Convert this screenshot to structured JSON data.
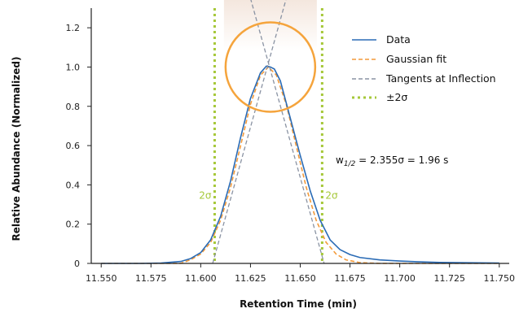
{
  "chart_data": {
    "type": "line",
    "title": "",
    "xlabel": "Retention Time (min)",
    "ylabel": "Relative Abundance (Normalized)",
    "xlim": [
      11.545,
      11.755
    ],
    "ylim": [
      0,
      1.3
    ],
    "x_ticks": [
      11.55,
      11.575,
      11.6,
      11.625,
      11.65,
      11.675,
      11.7,
      11.725,
      11.75
    ],
    "x_tick_labels": [
      "11.550",
      "11.575",
      "11.600",
      "11.625",
      "11.650",
      "11.675",
      "11.700",
      "11.725",
      "11.750"
    ],
    "y_ticks": [
      0,
      0.2,
      0.4,
      0.6,
      0.8,
      1.0,
      1.2
    ],
    "y_tick_labels": [
      "0",
      "0.2",
      "0.4",
      "0.6",
      "0.8",
      "1.0",
      "1.2"
    ],
    "grid": false,
    "legend_position": "top-right",
    "series": [
      {
        "name": "Data",
        "color": "#2a6bb5",
        "style": "solid",
        "x": [
          11.55,
          11.56,
          11.57,
          11.58,
          11.59,
          11.595,
          11.6,
          11.605,
          11.61,
          11.615,
          11.62,
          11.625,
          11.63,
          11.633,
          11.635,
          11.637,
          11.64,
          11.645,
          11.65,
          11.655,
          11.66,
          11.665,
          11.67,
          11.675,
          11.68,
          11.69,
          11.7,
          11.71,
          11.72,
          11.73,
          11.74,
          11.75
        ],
        "y": [
          0.0,
          0.0,
          0.0,
          0.002,
          0.01,
          0.025,
          0.055,
          0.12,
          0.24,
          0.42,
          0.64,
          0.84,
          0.97,
          1.005,
          1.0,
          0.99,
          0.93,
          0.74,
          0.55,
          0.37,
          0.22,
          0.12,
          0.07,
          0.045,
          0.03,
          0.018,
          0.012,
          0.008,
          0.005,
          0.004,
          0.003,
          0.002
        ]
      },
      {
        "name": "Gaussian fit",
        "color": "#f39a3a",
        "style": "dashed",
        "mu": 11.634,
        "sigma": 0.0138,
        "x": [
          11.55,
          11.56,
          11.57,
          11.58,
          11.59,
          11.595,
          11.6,
          11.605,
          11.61,
          11.615,
          11.62,
          11.625,
          11.63,
          11.634,
          11.638,
          11.643,
          11.648,
          11.653,
          11.658,
          11.663,
          11.668,
          11.673,
          11.68,
          11.69,
          11.7,
          11.75
        ],
        "y": [
          0.0,
          0.0,
          0.0,
          0.0,
          0.0005,
          0.019,
          0.048,
          0.107,
          0.22,
          0.388,
          0.598,
          0.81,
          0.958,
          1.0,
          0.959,
          0.809,
          0.598,
          0.388,
          0.22,
          0.107,
          0.048,
          0.018,
          0.004,
          0.0,
          0.0,
          0.0
        ]
      }
    ],
    "tangents": {
      "name": "Tangents at Inflection",
      "color": "#8a93a3",
      "style": "dashed",
      "lines": [
        {
          "x": [
            11.606,
            11.643
          ],
          "y": [
            0.0,
            1.35
          ]
        },
        {
          "x": [
            11.625,
            11.662
          ],
          "y": [
            1.35,
            0.0
          ]
        }
      ]
    },
    "sigma_lines": {
      "name": "±2σ",
      "color": "#a6c83a",
      "x": [
        11.607,
        11.661
      ],
      "labels": [
        "2σ",
        "2σ"
      ],
      "label_y": 0.33
    },
    "annotations": {
      "width_label_prefix": "w",
      "width_label_subscript": "1/2",
      "width_label_suffix": " = 2.355σ = 1.96 s",
      "highlight_circle_color": "#f5a43c",
      "highlight_circle_center": {
        "x": 11.635,
        "y": 1.0
      },
      "highlight_band_color": "#f3e4da"
    }
  }
}
